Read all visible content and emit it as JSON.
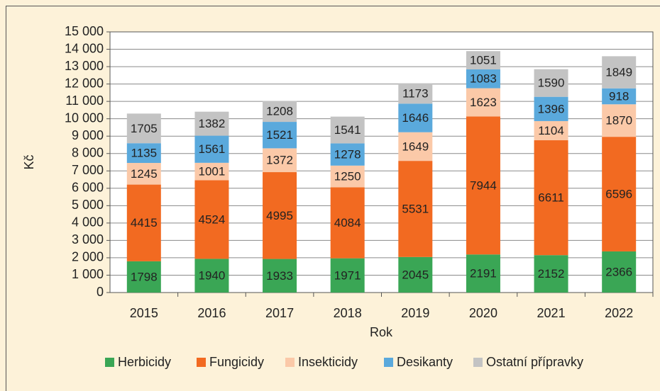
{
  "chart_data": {
    "type": "stacked_bar",
    "x_label": "Rok",
    "y_label": "Kč",
    "categories": [
      "2015",
      "2016",
      "2017",
      "2018",
      "2019",
      "2020",
      "2021",
      "2022"
    ],
    "series": [
      {
        "name": "Herbicidy",
        "color": "#3aa655",
        "values": [
          1798,
          1940,
          1933,
          1971,
          2045,
          2191,
          2152,
          2366
        ]
      },
      {
        "name": "Fungicidy",
        "color": "#f26a21",
        "values": [
          4415,
          4524,
          4995,
          4084,
          5531,
          7944,
          6611,
          6596
        ]
      },
      {
        "name": "Insekticidy",
        "color": "#fbc9a8",
        "values": [
          1245,
          1001,
          1372,
          1250,
          1649,
          1623,
          1104,
          1870
        ]
      },
      {
        "name": "Desikanty",
        "color": "#5aa9dc",
        "values": [
          1135,
          1561,
          1521,
          1278,
          1646,
          1083,
          1396,
          918
        ]
      },
      {
        "name": "Ostatní přípravky",
        "color": "#c3c3c3",
        "values": [
          1705,
          1382,
          1208,
          1541,
          1173,
          1051,
          1590,
          1849
        ]
      }
    ],
    "ylim": [
      0,
      15000
    ],
    "yticks": [
      0,
      {
        "value": 1000,
        "label": "1 000"
      },
      {
        "value": 2000,
        "label": "2 000"
      },
      {
        "value": 3000,
        "label": "3 000"
      },
      {
        "value": 4000,
        "label": "4 000"
      },
      {
        "value": 5000,
        "label": "5 000"
      },
      {
        "value": 6000,
        "label": "6 000"
      },
      {
        "value": 7000,
        "label": "7 000"
      },
      {
        "value": 8000,
        "label": "8 000"
      },
      {
        "value": 9000,
        "label": "9 000"
      },
      {
        "value": 10000,
        "label": "10 000"
      },
      {
        "value": 11000,
        "label": "11 000"
      },
      {
        "value": 12000,
        "label": "12 000"
      },
      {
        "value": 13000,
        "label": "13 000"
      },
      {
        "value": 14000,
        "label": "14 000"
      },
      {
        "value": 15000,
        "label": "15 000"
      }
    ],
    "grid": true,
    "legend": "bottom"
  }
}
